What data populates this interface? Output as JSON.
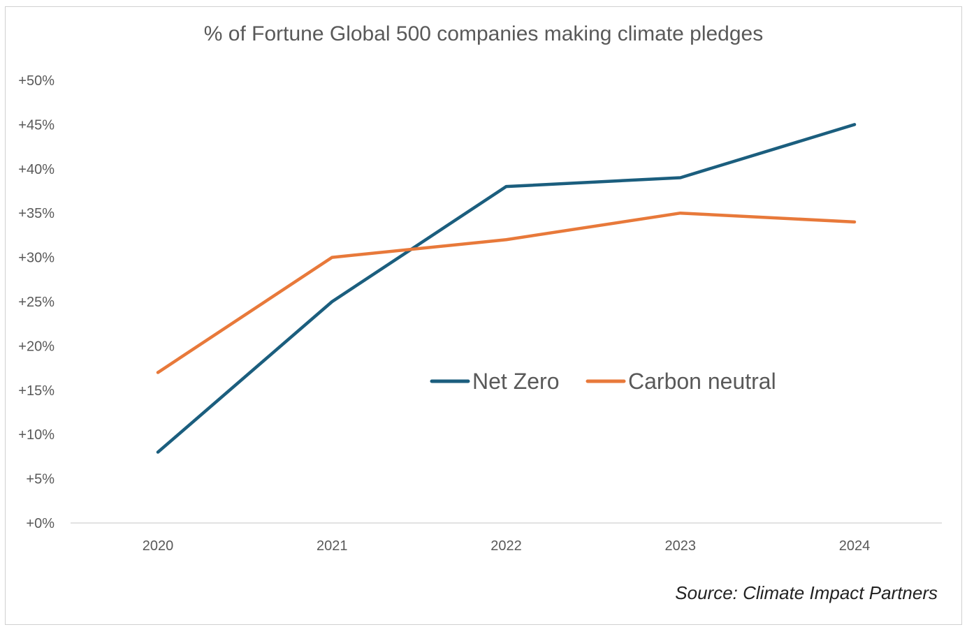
{
  "chart_data": {
    "type": "line",
    "title": "% of Fortune Global 500 companies making climate pledges",
    "xlabel": "",
    "ylabel": "",
    "categories": [
      "2020",
      "2021",
      "2022",
      "2023",
      "2024"
    ],
    "ylim": [
      0,
      50
    ],
    "yticks": [
      0,
      5,
      10,
      15,
      20,
      25,
      30,
      35,
      40,
      45,
      50
    ],
    "ytick_labels": [
      "+0%",
      "+5%",
      "+10%",
      "+15%",
      "+20%",
      "+25%",
      "+30%",
      "+35%",
      "+40%",
      "+45%",
      "+50%"
    ],
    "grid": false,
    "legend_position": "center-right",
    "series": [
      {
        "name": "Net Zero",
        "color": "#1b5e7e",
        "values": [
          8,
          25,
          38,
          39,
          45
        ]
      },
      {
        "name": "Carbon neutral",
        "color": "#e8793a",
        "values": [
          17,
          30,
          32,
          35,
          34
        ]
      }
    ],
    "source": "Source: Climate Impact Partners"
  }
}
